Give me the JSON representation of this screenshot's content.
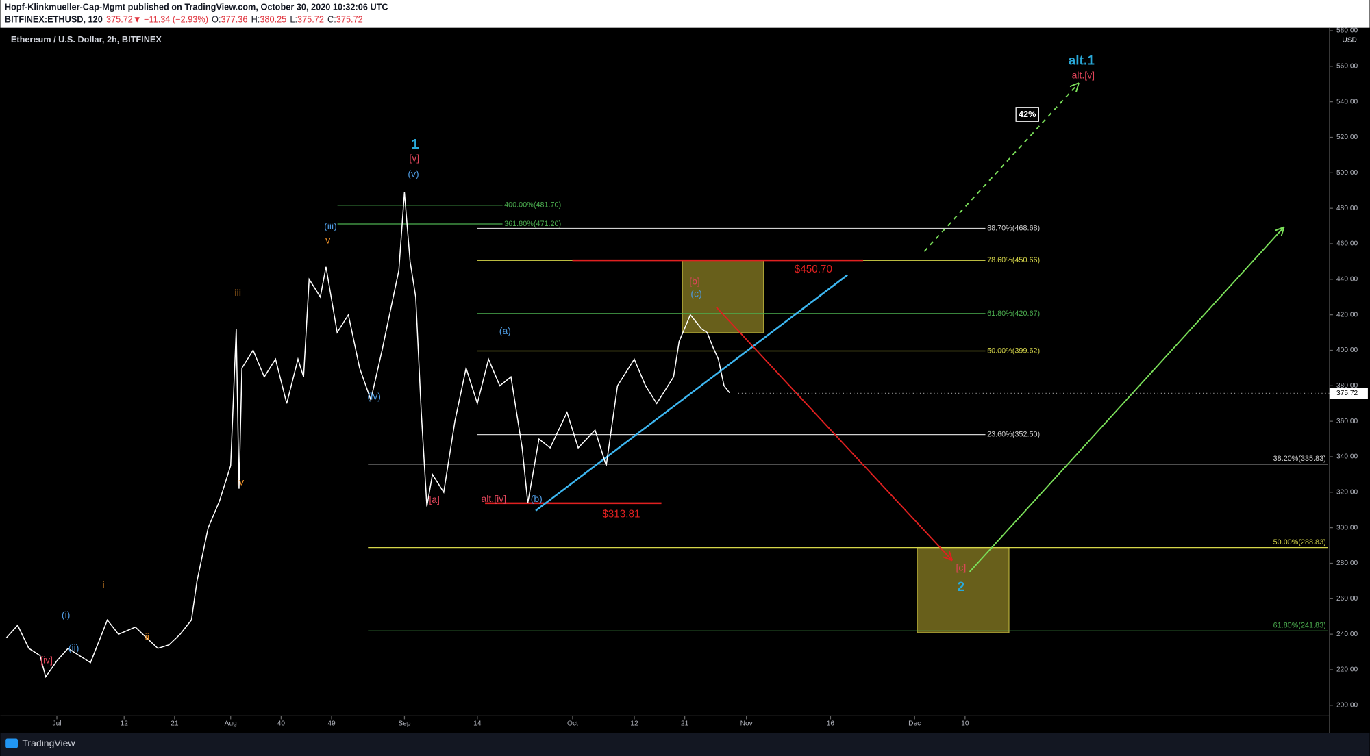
{
  "header": {
    "published": "Hopf-Klinkmueller-Cap-Mgmt published on TradingView.com, October 30, 2020 10:32:06 UTC",
    "symbol": "BITFINEX:ETHUSD, 120",
    "change": "375.72▼ −11.34 (−2.93%)",
    "ohlc": [
      {
        "key": "O:",
        "value": "377.36"
      },
      {
        "key": "H:",
        "value": "380.25"
      },
      {
        "key": "L:",
        "value": "375.72"
      },
      {
        "key": "C:",
        "value": "375.72"
      }
    ],
    "footer": "TradingView"
  },
  "chart_data": {
    "type": "line",
    "title": "Ethereum / U.S. Dollar, 2h, BITFINEX",
    "currency": "USD",
    "last_price": {
      "value": 375.72,
      "label": "375.72"
    },
    "color": "#ffffff",
    "x": [
      -9,
      -7,
      -5,
      -3,
      -2,
      0,
      2,
      4,
      6,
      8,
      9,
      11,
      14,
      16,
      18,
      20,
      22,
      24,
      25,
      27,
      29,
      31,
      32,
      32.5,
      33,
      35,
      37,
      39,
      41,
      43,
      44,
      45,
      47,
      48,
      50,
      52,
      54,
      56,
      58,
      60,
      61,
      62,
      63,
      64,
      65,
      66,
      67,
      69,
      71,
      73,
      75,
      77,
      79,
      81,
      82,
      83,
      84,
      86,
      88,
      91,
      93,
      96,
      98,
      100,
      103,
      105,
      107,
      110,
      111,
      113,
      115,
      116,
      117,
      118,
      119,
      120
    ],
    "values": [
      238,
      245,
      232,
      228,
      216,
      225,
      232,
      228,
      224,
      240,
      248,
      240,
      244,
      238,
      232,
      234,
      240,
      248,
      270,
      300,
      315,
      335,
      412,
      322,
      390,
      400,
      385,
      395,
      370,
      395,
      385,
      440,
      430,
      447,
      410,
      420,
      390,
      372,
      400,
      430,
      445,
      489,
      450,
      430,
      365,
      312,
      330,
      320,
      360,
      390,
      370,
      395,
      380,
      385,
      365,
      345,
      314,
      350,
      345,
      365,
      345,
      355,
      335,
      380,
      395,
      380,
      370,
      385,
      405,
      420,
      412,
      410,
      402,
      395,
      380,
      376
    ],
    "xlim": [
      -9.3,
      227
    ],
    "xticks": [
      {
        "value": 0,
        "label": "Jul"
      },
      12,
      21,
      {
        "value": 31,
        "label": "Aug"
      },
      40,
      49,
      {
        "value": 62,
        "label": "Sep"
      },
      {
        "value": 75,
        "label": "14"
      },
      {
        "value": 92,
        "label": "Oct"
      },
      {
        "value": 103,
        "label": "12"
      },
      {
        "value": 112,
        "label": "21"
      },
      {
        "value": 123,
        "label": "Nov"
      },
      {
        "value": 138,
        "label": "16"
      },
      {
        "value": 153,
        "label": "Dec"
      },
      {
        "value": 162,
        "label": "10"
      }
    ],
    "ylim": [
      194,
      580
    ],
    "yticks": [
      {
        "value": 200,
        "label": "200.00"
      },
      {
        "value": 220,
        "label": "220.00"
      },
      {
        "value": 240,
        "label": "240.00"
      },
      {
        "value": 260,
        "label": "260.00"
      },
      {
        "value": 280,
        "label": "280.00"
      },
      {
        "value": 300,
        "label": "300.00"
      },
      {
        "value": 320,
        "label": "320.00"
      },
      {
        "value": 340,
        "label": "340.00"
      },
      {
        "value": 360,
        "label": "360.00"
      },
      {
        "value": 380,
        "label": "380.00"
      },
      {
        "value": 400,
        "label": "400.00"
      },
      {
        "value": 420,
        "label": "420.00"
      },
      {
        "value": 440,
        "label": "440.00"
      },
      {
        "value": 460,
        "label": "460.00"
      },
      {
        "value": 480,
        "label": "480.00"
      },
      {
        "value": 500,
        "label": "500.00"
      },
      {
        "value": 520,
        "label": "520.00"
      },
      {
        "value": 540,
        "label": "540.00"
      },
      {
        "value": 560,
        "label": "560.00"
      },
      {
        "value": 580,
        "label": "580.00"
      }
    ],
    "fib_levels": [
      {
        "value": 481.7,
        "label": "400.00%(481.70)",
        "color": "#4caf50"
      },
      {
        "value": 471.2,
        "label": "361.80%(471.20)",
        "color": "#4caf50"
      },
      {
        "value": 468.68,
        "label": "88.70%(468.68)",
        "color": "#d0d0d0"
      },
      {
        "value": 450.66,
        "label": "78.60%(450.66)",
        "color": "#d6d64a"
      },
      {
        "value": 420.67,
        "label": "61.80%(420.67)",
        "color": "#4caf50"
      },
      {
        "value": 399.62,
        "label": "50.00%(399.62)",
        "color": "#d6d64a"
      },
      {
        "value": 352.5,
        "label": "23.60%(352.50)",
        "color": "#d0d0d0"
      },
      {
        "value": 335.83,
        "label": "38.20%(335.83)",
        "color": "#d0d0d0"
      },
      {
        "value": 288.83,
        "label": "50.00%(288.83)",
        "color": "#d6d64a"
      },
      {
        "value": 241.83,
        "label": "61.80%(241.83)",
        "color": "#4caf50"
      }
    ],
    "price_lines": [
      {
        "value": 450.7,
        "label": "$450.70"
      },
      {
        "value": 313.81,
        "label": "$313.81"
      }
    ],
    "probability": "42%",
    "wave_labels": [
      {
        "text": "1",
        "color": "#29a9d9"
      },
      {
        "text": "[v]",
        "color": "#e0455a"
      },
      {
        "text": "(v)",
        "color": "#4e9ae0"
      },
      {
        "text": "(iii)",
        "color": "#4e9ae0"
      },
      {
        "text": "v",
        "color": "#f0932a"
      },
      {
        "text": "iii",
        "color": "#f0932a"
      },
      {
        "text": "iv",
        "color": "#f0932a"
      },
      {
        "text": "(iv)",
        "color": "#4e9ae0"
      },
      {
        "text": "[a]",
        "color": "#e0455a"
      },
      {
        "text": "alt.[iv]",
        "color": "#e0455a"
      },
      {
        "text": "(b)",
        "color": "#4e9ae0"
      },
      {
        "text": "(a)",
        "color": "#4e9ae0"
      },
      {
        "text": "[b]",
        "color": "#e0455a"
      },
      {
        "text": "(c)",
        "color": "#4e9ae0"
      },
      {
        "text": "(i)",
        "color": "#4e9ae0"
      },
      {
        "text": "(ii)",
        "color": "#4e9ae0"
      },
      {
        "text": "[iv]",
        "color": "#e0455a"
      },
      {
        "text": "i",
        "color": "#f0932a"
      },
      {
        "text": "ii",
        "color": "#f0932a"
      },
      {
        "text": "alt.1",
        "color": "#29a9d9"
      },
      {
        "text": "alt.[v]",
        "color": "#e0455a"
      },
      {
        "text": "[c]",
        "color": "#e0455a"
      },
      {
        "text": "2",
        "color": "#29a9d9"
      }
    ]
  }
}
